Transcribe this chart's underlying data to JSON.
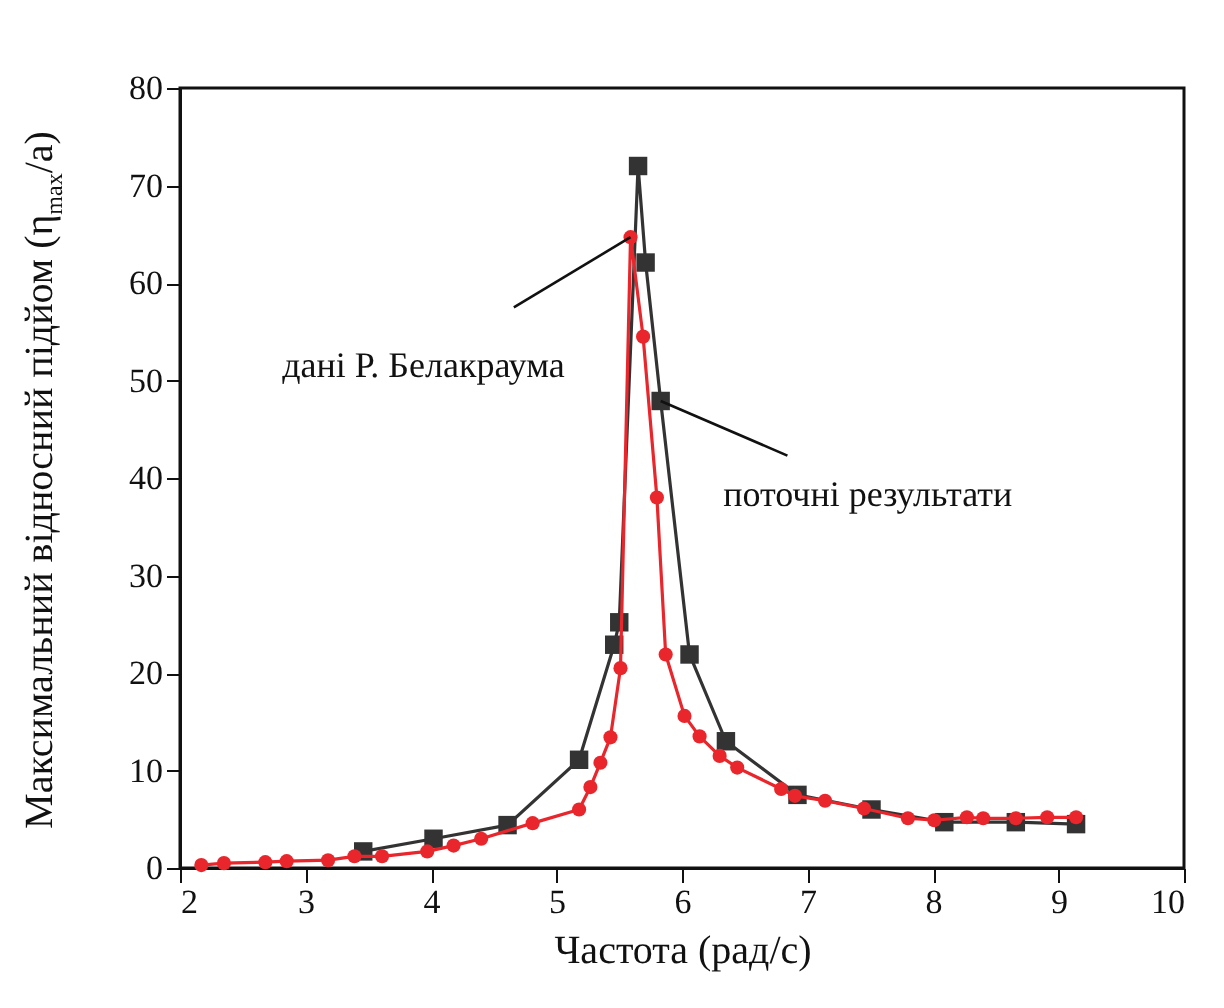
{
  "chart_data": {
    "type": "line",
    "xlabel": "Частота (рад/с)",
    "ylabel": "Максимальний відносний підйом (η$_{max}$/a)",
    "xlim": [
      2,
      10
    ],
    "xticks": [
      2,
      3,
      4,
      5,
      6,
      7,
      8,
      9,
      10
    ],
    "ylim": [
      0,
      80
    ],
    "yticks": [
      0,
      10,
      20,
      30,
      40,
      50,
      60,
      70,
      80
    ],
    "grid": false,
    "line_style": "solid",
    "series": [
      {
        "color": "#333333",
        "marker": "square",
        "x": [
          3.46,
          4.02,
          4.61,
          5.18,
          5.46,
          5.5,
          5.65,
          5.71,
          5.83,
          6.06,
          6.35,
          6.92,
          7.51,
          8.09,
          8.66,
          9.14
        ],
        "values": [
          1.7,
          3.0,
          4.4,
          11.1,
          22.9,
          25.2,
          72.0,
          62.1,
          47.9,
          21.9,
          13.0,
          7.5,
          6.0,
          4.7,
          4.7,
          4.5
        ]
      },
      {
        "color": "#e8262b",
        "marker": "circle",
        "x": [
          2.17,
          2.35,
          2.68,
          2.85,
          3.18,
          3.39,
          3.61,
          3.97,
          4.18,
          4.4,
          4.81,
          5.18,
          5.27,
          5.35,
          5.43,
          5.51,
          5.59,
          5.69,
          5.8,
          5.87,
          6.02,
          6.14,
          6.3,
          6.44,
          6.79,
          6.9,
          7.14,
          7.45,
          7.8,
          8.01,
          8.27,
          8.4,
          8.66,
          8.91,
          9.14
        ],
        "values": [
          0.3,
          0.5,
          0.6,
          0.7,
          0.8,
          1.2,
          1.2,
          1.7,
          2.3,
          3.0,
          4.6,
          6.0,
          8.3,
          10.8,
          13.4,
          20.5,
          64.7,
          54.5,
          38.0,
          21.9,
          15.6,
          13.5,
          11.5,
          10.3,
          8.1,
          7.4,
          6.9,
          6.1,
          5.1,
          4.9,
          5.2,
          5.1,
          5.1,
          5.2,
          5.2
        ]
      }
    ],
    "annotations": [
      {
        "text": "дані Р. Белакраума",
        "x": 5.59,
        "y": 64.7
      },
      {
        "text": "поточні результати",
        "x": 5.83,
        "y": 47.9
      }
    ]
  }
}
